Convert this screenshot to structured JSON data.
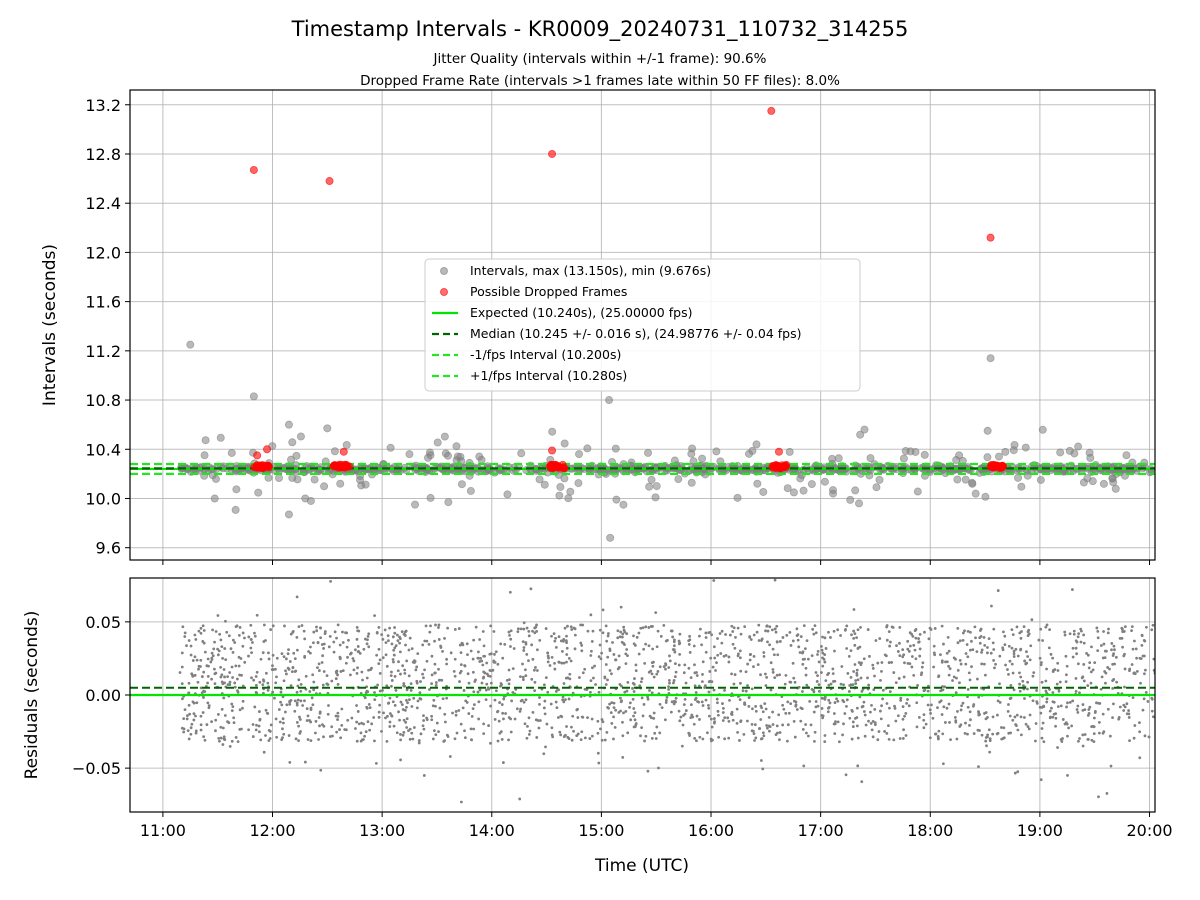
{
  "figure": {
    "title": "Timestamp Intervals - KR0009_20240731_110732_314255",
    "subtitle_1": "Jitter Quality (intervals within +/-1 frame): 90.6%",
    "subtitle_2": "Dropped Frame Rate (intervals >1 frames late within 50 FF files): 8.0%"
  },
  "colors": {
    "intervals": "#808080",
    "dropped": "#ff0000",
    "expected": "#00e600",
    "median": "#006400",
    "bounds": "#22e622"
  },
  "chart_data": [
    {
      "type": "scatter",
      "ylabel": "Intervals (seconds)",
      "xlim_hours": [
        10.7,
        20.05
      ],
      "ylim": [
        9.5,
        13.32
      ],
      "y_ticks": [
        "9.6",
        "10.0",
        "10.4",
        "10.8",
        "11.2",
        "11.6",
        "12.0",
        "12.4",
        "12.8",
        "13.2"
      ],
      "y_tick_values": [
        9.6,
        10.0,
        10.4,
        10.8,
        11.2,
        11.6,
        12.0,
        12.4,
        12.8,
        13.2
      ],
      "grid": true,
      "legend_position": "center-right",
      "legend": [
        "Intervals, max (13.150s), min (9.676s)",
        "Possible Dropped Frames",
        "Expected (10.240s), (25.00000 fps)",
        "Median (10.245 +/- 0.016 s), (24.98776 +/- 0.04 fps)",
        "-1/fps Interval (10.200s)",
        "+1/fps Interval (10.280s)"
      ],
      "reference_lines": {
        "expected": 10.24,
        "median": 10.245,
        "minus_1_fps": 10.2,
        "plus_1_fps": 10.28
      },
      "interval_range_hours": [
        11.15,
        20.05
      ],
      "interval_outliers": [
        {
          "x": 11.25,
          "y": 11.25
        },
        {
          "x": 11.83,
          "y": 10.83
        },
        {
          "x": 12.15,
          "y": 10.6
        },
        {
          "x": 12.15,
          "y": 9.87
        },
        {
          "x": 12.5,
          "y": 10.57
        },
        {
          "x": 12.35,
          "y": 9.98
        },
        {
          "x": 13.3,
          "y": 9.95
        },
        {
          "x": 15.07,
          "y": 10.8
        },
        {
          "x": 15.08,
          "y": 9.68
        },
        {
          "x": 17.4,
          "y": 10.56
        },
        {
          "x": 17.35,
          "y": 9.96
        },
        {
          "x": 18.55,
          "y": 11.14
        }
      ],
      "dropped_frames": [
        {
          "x": 11.83,
          "y": 12.67
        },
        {
          "x": 12.52,
          "y": 12.58
        },
        {
          "x": 14.55,
          "y": 12.8
        },
        {
          "x": 16.55,
          "y": 13.15
        },
        {
          "x": 18.55,
          "y": 12.12
        },
        {
          "x": 11.87,
          "y": 10.25
        },
        {
          "x": 11.92,
          "y": 10.25
        },
        {
          "x": 11.95,
          "y": 10.4
        },
        {
          "x": 11.86,
          "y": 10.35
        },
        {
          "x": 12.6,
          "y": 10.26
        },
        {
          "x": 12.65,
          "y": 10.38
        },
        {
          "x": 12.7,
          "y": 10.26
        },
        {
          "x": 14.55,
          "y": 10.39
        },
        {
          "x": 14.6,
          "y": 10.26
        },
        {
          "x": 14.65,
          "y": 10.25
        },
        {
          "x": 16.58,
          "y": 10.26
        },
        {
          "x": 16.62,
          "y": 10.38
        },
        {
          "x": 16.66,
          "y": 10.26
        },
        {
          "x": 18.58,
          "y": 10.25
        },
        {
          "x": 18.64,
          "y": 10.26
        }
      ]
    },
    {
      "type": "scatter",
      "ylabel": "Residuals (seconds)",
      "xlabel": "Time (UTC)",
      "xlim_hours": [
        10.7,
        20.05
      ],
      "ylim": [
        -0.08,
        0.08
      ],
      "y_ticks": [
        "−0.05",
        "0.00",
        "0.05"
      ],
      "y_tick_values": [
        -0.05,
        0.0,
        0.05
      ],
      "x_ticks": [
        "11:00",
        "12:00",
        "13:00",
        "14:00",
        "15:00",
        "16:00",
        "17:00",
        "18:00",
        "19:00",
        "20:00"
      ],
      "x_tick_values": [
        11,
        12,
        13,
        14,
        15,
        16,
        17,
        18,
        19,
        20
      ],
      "grid": true,
      "reference_lines": {
        "zero": 0.0,
        "median_offset": 0.005
      },
      "residual_range_hours": [
        11.15,
        20.05
      ],
      "residual_spread_seconds": 0.04
    }
  ]
}
